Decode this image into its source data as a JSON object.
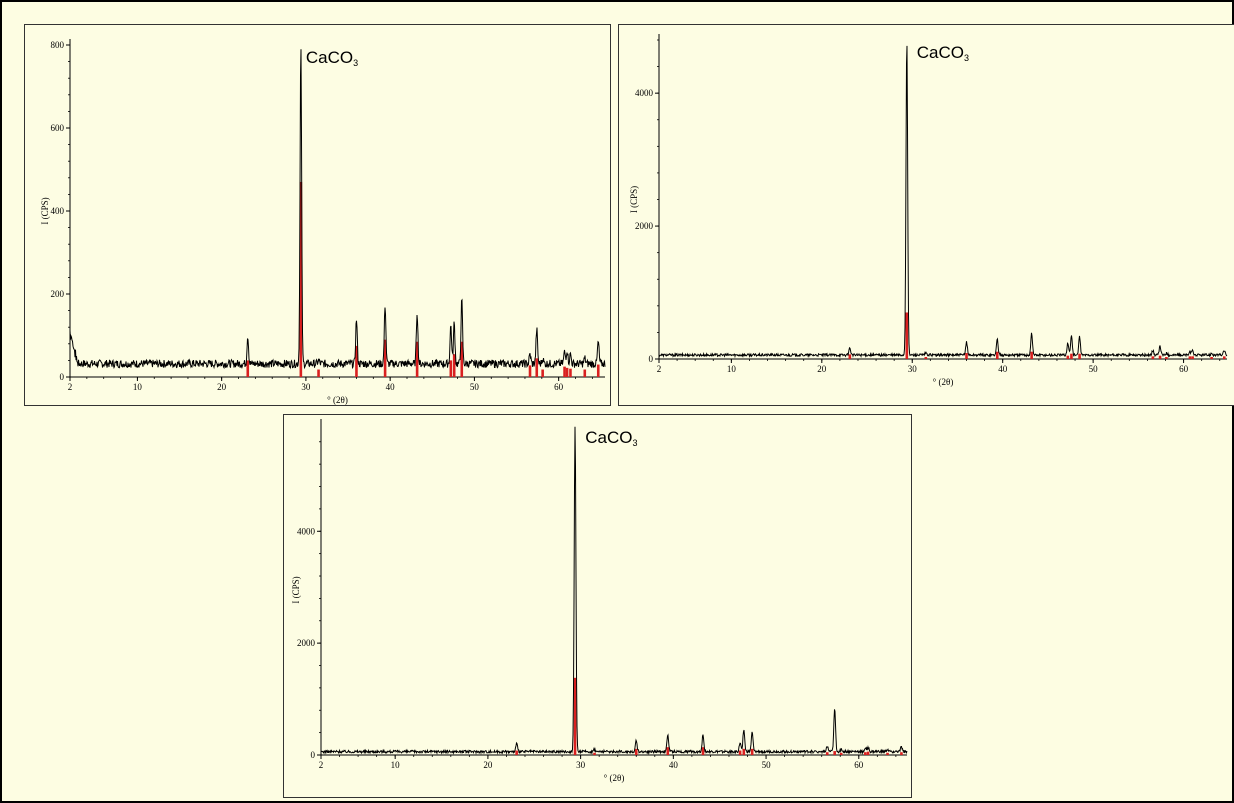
{
  "chart_data": [
    {
      "type": "line",
      "annotation": {
        "text": "CaCO",
        "sub": "3",
        "x": 30.0
      },
      "xlabel": "° (2θ)",
      "ylabel": "I (CPS)",
      "xlim": [
        2,
        65.5
      ],
      "ylim": [
        0,
        800
      ],
      "xticks": [
        2,
        10,
        20,
        30,
        40,
        50,
        60
      ],
      "yticks": [
        0,
        200,
        400,
        600,
        800
      ],
      "baseline": 32,
      "low_angle_rise": {
        "start": 110,
        "decay_to": 2.9
      },
      "peaks": [
        {
          "x": 23.1,
          "y": 100
        },
        {
          "x": 29.4,
          "y": 800
        },
        {
          "x": 31.5,
          "y": 40
        },
        {
          "x": 36.0,
          "y": 140
        },
        {
          "x": 39.4,
          "y": 175
        },
        {
          "x": 43.2,
          "y": 158
        },
        {
          "x": 47.2,
          "y": 125
        },
        {
          "x": 47.6,
          "y": 130
        },
        {
          "x": 48.5,
          "y": 185
        },
        {
          "x": 56.6,
          "y": 55
        },
        {
          "x": 57.4,
          "y": 115
        },
        {
          "x": 58.1,
          "y": 45
        },
        {
          "x": 60.7,
          "y": 60
        },
        {
          "x": 61.0,
          "y": 65
        },
        {
          "x": 61.4,
          "y": 55
        },
        {
          "x": 63.1,
          "y": 45
        },
        {
          "x": 64.7,
          "y": 85
        }
      ],
      "reference_sticks": [
        {
          "x": 23.1,
          "y": 40
        },
        {
          "x": 29.4,
          "y": 470
        },
        {
          "x": 31.5,
          "y": 18
        },
        {
          "x": 36.0,
          "y": 75
        },
        {
          "x": 39.4,
          "y": 90
        },
        {
          "x": 43.2,
          "y": 85
        },
        {
          "x": 47.2,
          "y": 40
        },
        {
          "x": 47.6,
          "y": 55
        },
        {
          "x": 48.5,
          "y": 85
        },
        {
          "x": 56.6,
          "y": 28
        },
        {
          "x": 57.4,
          "y": 45
        },
        {
          "x": 58.1,
          "y": 18
        },
        {
          "x": 60.7,
          "y": 25
        },
        {
          "x": 61.0,
          "y": 22
        },
        {
          "x": 61.4,
          "y": 20
        },
        {
          "x": 63.1,
          "y": 18
        },
        {
          "x": 64.7,
          "y": 30
        }
      ],
      "grid": false,
      "line_color": "#000000",
      "stick_color": "#d92020"
    },
    {
      "type": "line",
      "annotation": {
        "text": "CaCO",
        "sub": "3",
        "x": 30.5
      },
      "xlabel": "° (2θ)",
      "ylabel": "I (CPS)",
      "xlim": [
        2,
        64.8
      ],
      "ylim": [
        0,
        4800
      ],
      "xticks": [
        2,
        10,
        20,
        30,
        40,
        50,
        60
      ],
      "yticks": [
        0,
        2000,
        4000
      ],
      "baseline": 60,
      "low_angle_rise": null,
      "peaks": [
        {
          "x": 23.1,
          "y": 170
        },
        {
          "x": 29.4,
          "y": 4800
        },
        {
          "x": 31.5,
          "y": 90
        },
        {
          "x": 36.0,
          "y": 260
        },
        {
          "x": 39.4,
          "y": 300
        },
        {
          "x": 43.2,
          "y": 390
        },
        {
          "x": 47.2,
          "y": 240
        },
        {
          "x": 47.6,
          "y": 360
        },
        {
          "x": 48.5,
          "y": 330
        },
        {
          "x": 56.6,
          "y": 130
        },
        {
          "x": 57.4,
          "y": 190
        },
        {
          "x": 58.1,
          "y": 90
        },
        {
          "x": 60.7,
          "y": 110
        },
        {
          "x": 61.0,
          "y": 120
        },
        {
          "x": 63.1,
          "y": 90
        },
        {
          "x": 64.5,
          "y": 130
        }
      ],
      "reference_sticks": [
        {
          "x": 23.1,
          "y": 70
        },
        {
          "x": 29.4,
          "y": 700
        },
        {
          "x": 31.5,
          "y": 30
        },
        {
          "x": 36.0,
          "y": 90
        },
        {
          "x": 39.4,
          "y": 110
        },
        {
          "x": 43.2,
          "y": 110
        },
        {
          "x": 47.2,
          "y": 50
        },
        {
          "x": 47.6,
          "y": 80
        },
        {
          "x": 48.5,
          "y": 80
        },
        {
          "x": 56.6,
          "y": 40
        },
        {
          "x": 57.4,
          "y": 50
        },
        {
          "x": 58.1,
          "y": 30
        },
        {
          "x": 60.7,
          "y": 40
        },
        {
          "x": 61.0,
          "y": 40
        },
        {
          "x": 63.1,
          "y": 30
        },
        {
          "x": 64.5,
          "y": 40
        }
      ],
      "grid": false,
      "line_color": "#000000",
      "stick_color": "#d92020"
    },
    {
      "type": "line",
      "annotation": {
        "text": "CaCO",
        "sub": "3",
        "x": 30.5
      },
      "xlabel": "° (2θ)",
      "ylabel": "I (CPS)",
      "xlim": [
        2,
        65.2
      ],
      "ylim": [
        0,
        5900
      ],
      "xticks": [
        2,
        10,
        20,
        30,
        40,
        50,
        60
      ],
      "yticks": [
        0,
        2000,
        4000
      ],
      "baseline": 60,
      "low_angle_rise": null,
      "peaks": [
        {
          "x": 23.1,
          "y": 200
        },
        {
          "x": 29.4,
          "y": 5900
        },
        {
          "x": 31.5,
          "y": 100
        },
        {
          "x": 36.0,
          "y": 250
        },
        {
          "x": 39.4,
          "y": 360
        },
        {
          "x": 43.2,
          "y": 370
        },
        {
          "x": 47.2,
          "y": 220
        },
        {
          "x": 47.6,
          "y": 460
        },
        {
          "x": 48.5,
          "y": 400
        },
        {
          "x": 56.6,
          "y": 150
        },
        {
          "x": 57.4,
          "y": 820
        },
        {
          "x": 58.1,
          "y": 100
        },
        {
          "x": 60.7,
          "y": 120
        },
        {
          "x": 61.0,
          "y": 140
        },
        {
          "x": 63.1,
          "y": 100
        },
        {
          "x": 64.6,
          "y": 140
        }
      ],
      "reference_sticks": [
        {
          "x": 23.1,
          "y": 80
        },
        {
          "x": 29.4,
          "y": 1380
        },
        {
          "x": 31.5,
          "y": 40
        },
        {
          "x": 36.0,
          "y": 110
        },
        {
          "x": 39.4,
          "y": 140
        },
        {
          "x": 43.2,
          "y": 140
        },
        {
          "x": 47.2,
          "y": 80
        },
        {
          "x": 47.6,
          "y": 110
        },
        {
          "x": 48.5,
          "y": 110
        },
        {
          "x": 56.6,
          "y": 50
        },
        {
          "x": 57.4,
          "y": 70
        },
        {
          "x": 58.1,
          "y": 40
        },
        {
          "x": 60.7,
          "y": 50
        },
        {
          "x": 61.0,
          "y": 60
        },
        {
          "x": 63.1,
          "y": 40
        },
        {
          "x": 64.6,
          "y": 50
        }
      ],
      "grid": false,
      "line_color": "#000000",
      "stick_color": "#d92020"
    }
  ]
}
